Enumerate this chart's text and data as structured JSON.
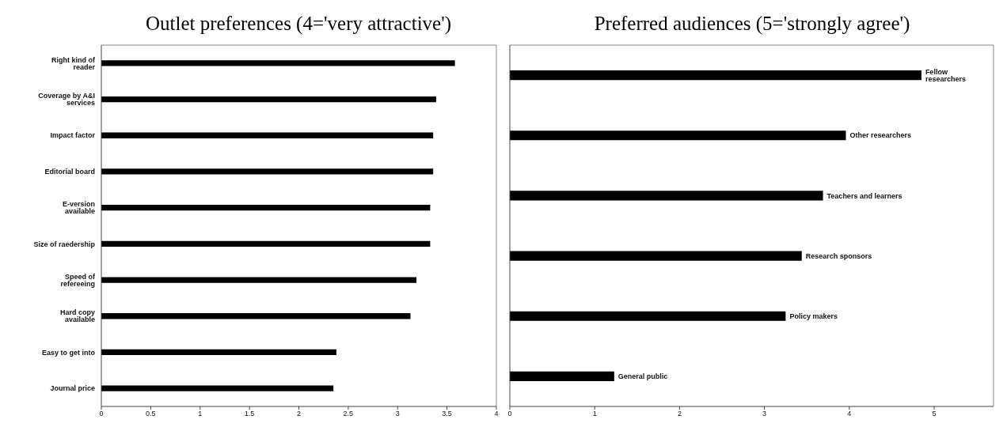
{
  "chart_data": [
    {
      "type": "bar",
      "orientation": "horizontal",
      "title": "Outlet preferences (4='very attractive')",
      "categories": [
        "Right kind of reader",
        "Coverage by A&I services",
        "Impact factor",
        "Editorial board",
        "E-version available",
        "Size of raedership",
        "Speed of refereeing",
        "Hard copy available",
        "Easy to get into",
        "Journal price"
      ],
      "values": [
        3.58,
        3.39,
        3.36,
        3.36,
        3.33,
        3.33,
        3.19,
        3.13,
        2.38,
        2.35
      ],
      "color": "#000000",
      "xlim": [
        0,
        4
      ],
      "xticks": [
        0,
        0.5,
        1,
        1.5,
        2,
        2.5,
        3,
        3.5,
        4
      ],
      "grid": false,
      "legend": false
    },
    {
      "type": "bar",
      "orientation": "horizontal",
      "title": "Preferred audiences (5='strongly agree')",
      "categories": [
        "Fellow researchers",
        "Other researchers",
        "Teachers and learners",
        "Research sponsors",
        "Policy makers",
        "General public"
      ],
      "values": [
        4.85,
        3.96,
        3.69,
        3.44,
        3.25,
        1.23
      ],
      "color": "#000000",
      "xlim": [
        0,
        5.7
      ],
      "xticks": [
        0,
        1,
        2,
        3,
        4,
        5
      ],
      "grid": false,
      "legend": false,
      "tick_labels": "x"
    }
  ]
}
